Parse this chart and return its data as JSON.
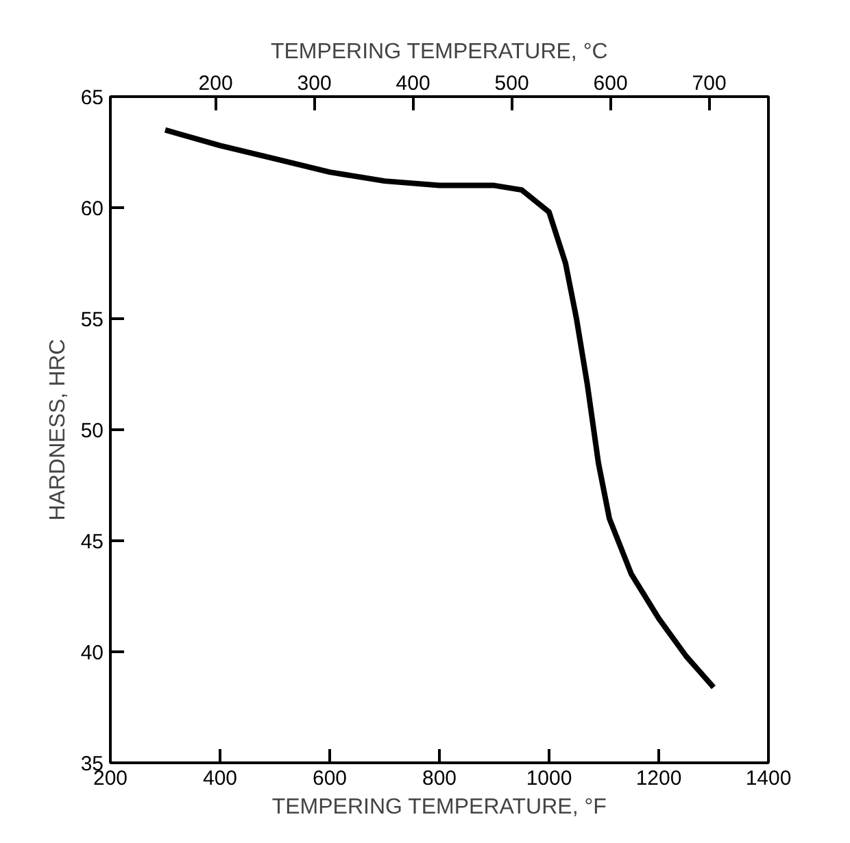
{
  "chart_data": {
    "type": "line",
    "xlabel": "TEMPERING TEMPERATURE, °F",
    "ylabel": "HARDNESS, HRC",
    "x2label": "TEMPERING TEMPERATURE, °C",
    "xlim": [
      200,
      1400
    ],
    "xticks": [
      200,
      400,
      600,
      800,
      1000,
      1200,
      1400
    ],
    "x2lim": [
      93.3,
      760
    ],
    "x2ticks": [
      200,
      300,
      400,
      500,
      600,
      700
    ],
    "ylim": [
      35,
      65
    ],
    "yticks": [
      35,
      40,
      45,
      50,
      55,
      60,
      65
    ],
    "grid": false,
    "marker": "none",
    "line_style": "solid",
    "series": [
      {
        "color": "#000000",
        "x": [
          300,
          400,
          500,
          600,
          700,
          800,
          900,
          950,
          1000,
          1030,
          1050,
          1070,
          1090,
          1110,
          1150,
          1200,
          1250,
          1300
        ],
        "values": [
          63.5,
          62.8,
          62.2,
          61.6,
          61.2,
          61.0,
          61.0,
          60.8,
          59.8,
          57.5,
          55,
          52,
          48.5,
          46,
          43.5,
          41.5,
          39.8,
          38.4
        ]
      }
    ]
  }
}
